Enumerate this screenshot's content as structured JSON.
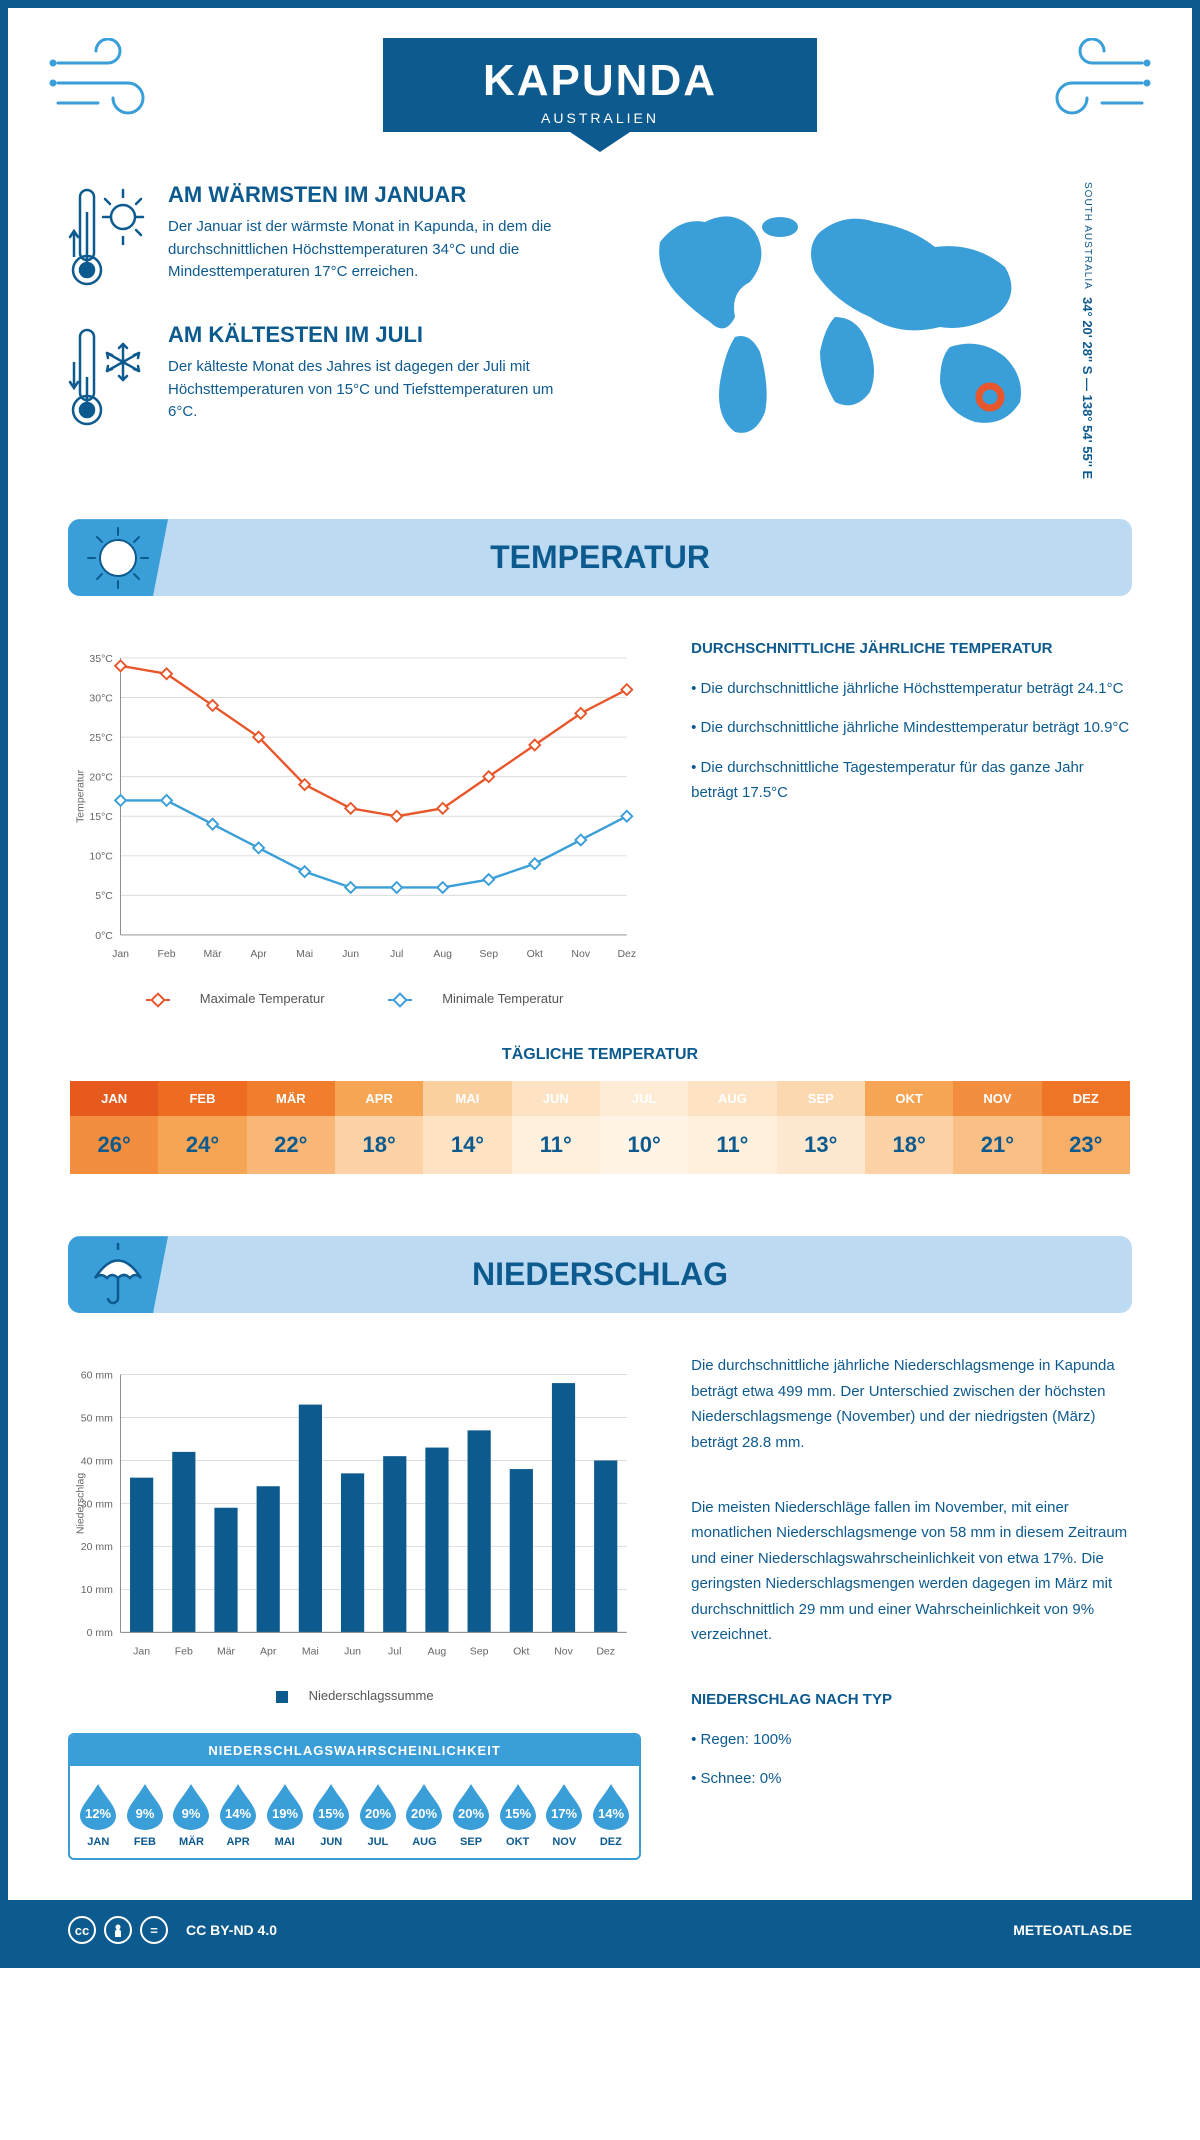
{
  "header": {
    "title": "KAPUNDA",
    "subtitle": "AUSTRALIEN"
  },
  "coords": {
    "lat": "34° 20' 28'' S — 138° 54' 55'' E",
    "region": "SOUTH AUSTRALIA"
  },
  "facts": {
    "warmest": {
      "title": "AM WÄRMSTEN IM JANUAR",
      "text": "Der Januar ist der wärmste Monat in Kapunda, in dem die durchschnittlichen Höchsttemperaturen 34°C und die Mindesttemperaturen 17°C erreichen."
    },
    "coldest": {
      "title": "AM KÄLTESTEN IM JULI",
      "text": "Der kälteste Monat des Jahres ist dagegen der Juli mit Höchsttemperaturen von 15°C und Tiefsttemperaturen um 6°C."
    }
  },
  "sections": {
    "temp": "TEMPERATUR",
    "precip": "NIEDERSCHLAG"
  },
  "temp_chart": {
    "type": "line",
    "months": [
      "Jan",
      "Feb",
      "Mär",
      "Apr",
      "Mai",
      "Jun",
      "Jul",
      "Aug",
      "Sep",
      "Okt",
      "Nov",
      "Dez"
    ],
    "max_values": [
      34,
      33,
      29,
      25,
      19,
      16,
      15,
      16,
      20,
      24,
      28,
      31
    ],
    "min_values": [
      17,
      17,
      14,
      11,
      8,
      6,
      6,
      6,
      7,
      9,
      12,
      15
    ],
    "max_color": "#e8572b",
    "min_color": "#3a9ed8",
    "ylabel": "Temperatur",
    "ylim": [
      0,
      35
    ],
    "ytick_step": 5,
    "grid_color": "#dcdcdc",
    "axis_color": "#888",
    "label_fontsize": 11,
    "legend_max": "Maximale Temperatur",
    "legend_min": "Minimale Temperatur"
  },
  "temp_info": {
    "heading": "DURCHSCHNITTLICHE JÄHRLICHE TEMPERATUR",
    "line1": "• Die durchschnittliche jährliche Höchsttemperatur beträgt 24.1°C",
    "line2": "• Die durchschnittliche jährliche Mindesttemperatur beträgt 10.9°C",
    "line3": "• Die durchschnittliche Tagestemperatur für das ganze Jahr beträgt 17.5°C"
  },
  "daily_temp": {
    "heading": "TÄGLICHE TEMPERATUR",
    "months": [
      "JAN",
      "FEB",
      "MÄR",
      "APR",
      "MAI",
      "JUN",
      "JUL",
      "AUG",
      "SEP",
      "OKT",
      "NOV",
      "DEZ"
    ],
    "values": [
      "26°",
      "24°",
      "22°",
      "18°",
      "14°",
      "11°",
      "10°",
      "11°",
      "13°",
      "18°",
      "21°",
      "23°"
    ],
    "header_colors": [
      "#e65a1e",
      "#ed6c22",
      "#f07e2c",
      "#f5a553",
      "#fbd0a1",
      "#fde3c4",
      "#feecd6",
      "#fde3c4",
      "#fcd8b1",
      "#f5a553",
      "#f28e3e",
      "#ee7526"
    ],
    "value_colors": [
      "#f28e3e",
      "#f5a553",
      "#f9b877",
      "#fcd2a6",
      "#fde3c4",
      "#fef0dd",
      "#fff4e6",
      "#fef0dd",
      "#fee9d0",
      "#fcd2a6",
      "#f9bf85",
      "#f7ae66"
    ]
  },
  "precip_chart": {
    "type": "bar",
    "months": [
      "Jan",
      "Feb",
      "Mär",
      "Apr",
      "Mai",
      "Jun",
      "Jul",
      "Aug",
      "Sep",
      "Okt",
      "Nov",
      "Dez"
    ],
    "values": [
      36,
      42,
      29,
      34,
      53,
      37,
      41,
      43,
      47,
      38,
      58,
      40
    ],
    "bar_color": "#0d5a8f",
    "ylabel": "Niederschlag",
    "ylim": [
      0,
      60
    ],
    "ytick_step": 10,
    "grid_color": "#dcdcdc",
    "axis_color": "#888",
    "label_fontsize": 11,
    "bar_width": 0.55,
    "legend": "Niederschlagssumme"
  },
  "precip_prob": {
    "heading": "NIEDERSCHLAGSWAHRSCHEINLICHKEIT",
    "months": [
      "JAN",
      "FEB",
      "MÄR",
      "APR",
      "MAI",
      "JUN",
      "JUL",
      "AUG",
      "SEP",
      "OKT",
      "NOV",
      "DEZ"
    ],
    "values": [
      "12%",
      "9%",
      "9%",
      "14%",
      "19%",
      "15%",
      "20%",
      "20%",
      "20%",
      "15%",
      "17%",
      "14%"
    ],
    "drop_color": "#3a9ed8"
  },
  "precip_info": {
    "p1": "Die durchschnittliche jährliche Niederschlagsmenge in Kapunda beträgt etwa 499 mm. Der Unterschied zwischen der höchsten Niederschlagsmenge (November) und der niedrigsten (März) beträgt 28.8 mm.",
    "p2": "Die meisten Niederschläge fallen im November, mit einer monatlichen Niederschlagsmenge von 58 mm in diesem Zeitraum und einer Niederschlagswahrscheinlichkeit von etwa 17%. Die geringsten Niederschlagsmengen werden dagegen im März mit durchschnittlich 29 mm und einer Wahrscheinlichkeit von 9% verzeichnet.",
    "type_heading": "NIEDERSCHLAG NACH TYP",
    "type1": "• Regen: 100%",
    "type2": "• Schnee: 0%"
  },
  "footer": {
    "license": "CC BY-ND 4.0",
    "site": "METEOATLAS.DE"
  }
}
